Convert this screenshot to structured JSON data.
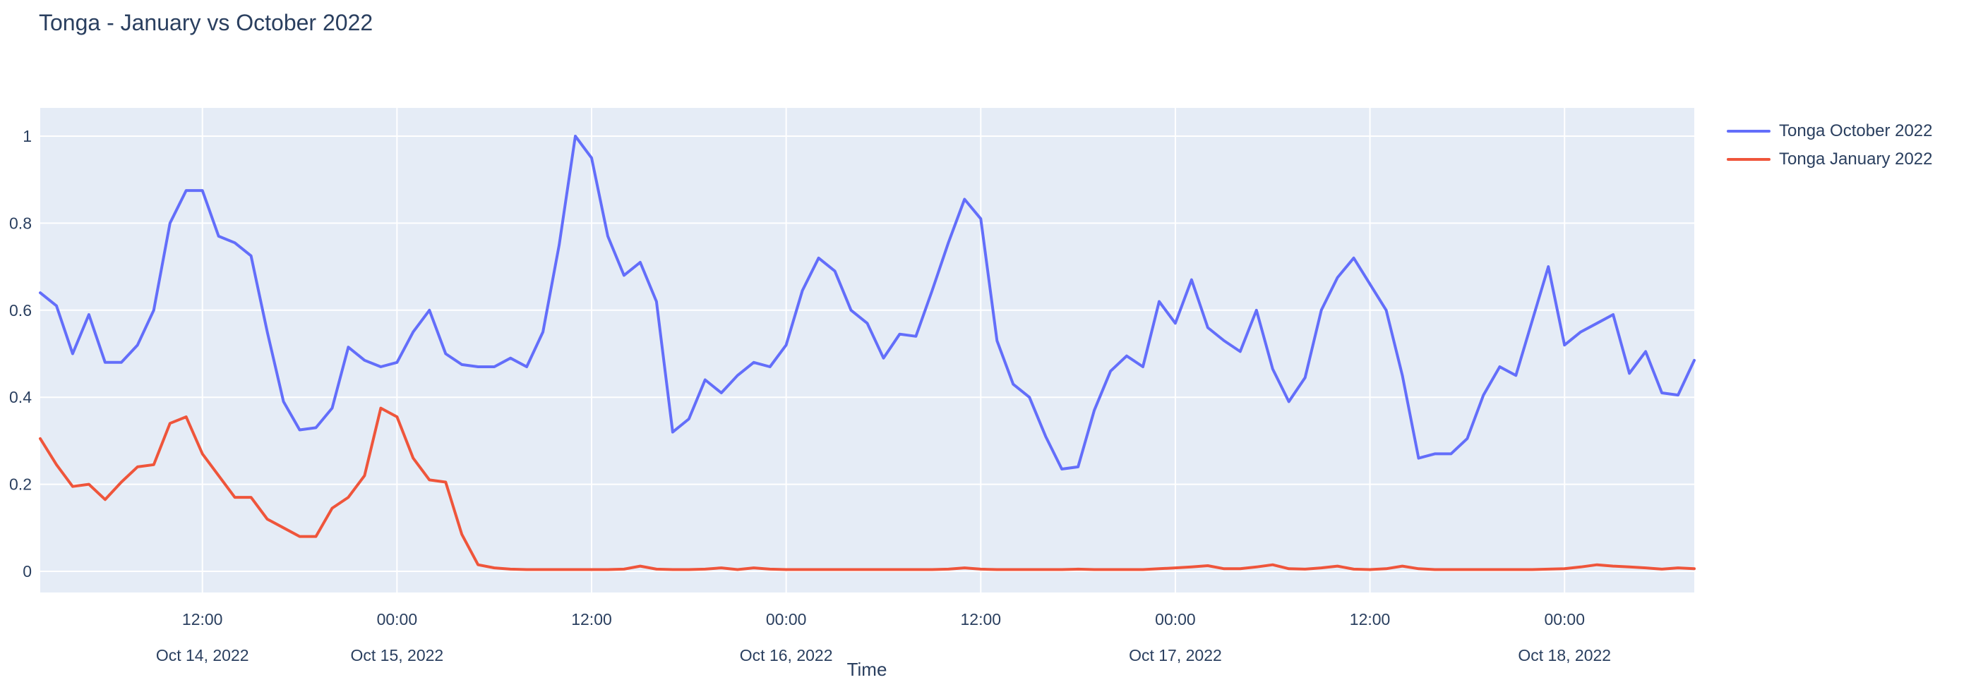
{
  "page": {
    "title": "Tonga - January vs October 2022"
  },
  "legend": {
    "items": [
      {
        "label": "Tonga October 2022",
        "color": "#636efa"
      },
      {
        "label": "Tonga January 2022",
        "color": "#ef553b"
      }
    ]
  },
  "axes": {
    "x_title": "Time",
    "y_tick_labels": [
      "0",
      "0.2",
      "0.4",
      "0.6",
      "0.8",
      "1"
    ]
  },
  "chart_data": {
    "type": "line",
    "title": "Tonga - January vs October 2022",
    "xlabel": "Time",
    "ylabel": "",
    "x_start": "2022-10-14 02:00",
    "x_interval_hours": 1,
    "n_points": 103,
    "ylim": [
      -0.049,
      1.065
    ],
    "y_ticks": [
      0,
      0.2,
      0.4,
      0.6,
      0.8,
      1
    ],
    "plot_bg": "#e5ecf6",
    "grid_color": "#ffffff",
    "legend_position": "top-right-outside",
    "x_ticks": [
      {
        "offset_hours": 10,
        "time": "12:00",
        "date": "Oct 14, 2022"
      },
      {
        "offset_hours": 22,
        "time": "00:00",
        "date": "Oct 15, 2022"
      },
      {
        "offset_hours": 34,
        "time": "12:00",
        "date": ""
      },
      {
        "offset_hours": 46,
        "time": "00:00",
        "date": "Oct 16, 2022"
      },
      {
        "offset_hours": 58,
        "time": "12:00",
        "date": ""
      },
      {
        "offset_hours": 70,
        "time": "00:00",
        "date": "Oct 17, 2022"
      },
      {
        "offset_hours": 82,
        "time": "12:00",
        "date": ""
      },
      {
        "offset_hours": 94,
        "time": "00:00",
        "date": "Oct 18, 2022"
      }
    ],
    "series": [
      {
        "name": "Tonga October 2022",
        "color": "#636efa",
        "values": [
          0.64,
          0.61,
          0.5,
          0.59,
          0.48,
          0.48,
          0.52,
          0.6,
          0.8,
          0.875,
          0.875,
          0.77,
          0.755,
          0.725,
          0.55,
          0.39,
          0.325,
          0.33,
          0.375,
          0.515,
          0.485,
          0.47,
          0.48,
          0.55,
          0.6,
          0.5,
          0.475,
          0.47,
          0.47,
          0.49,
          0.47,
          0.55,
          0.75,
          1.0,
          0.95,
          0.77,
          0.68,
          0.71,
          0.62,
          0.32,
          0.35,
          0.44,
          0.41,
          0.45,
          0.48,
          0.47,
          0.52,
          0.645,
          0.72,
          0.69,
          0.6,
          0.57,
          0.49,
          0.545,
          0.54,
          0.645,
          0.755,
          0.855,
          0.81,
          0.53,
          0.43,
          0.4,
          0.31,
          0.235,
          0.24,
          0.37,
          0.46,
          0.495,
          0.47,
          0.62,
          0.57,
          0.67,
          0.56,
          0.53,
          0.505,
          0.6,
          0.465,
          0.39,
          0.445,
          0.6,
          0.675,
          0.72,
          0.66,
          0.6,
          0.45,
          0.26,
          0.27,
          0.27,
          0.305,
          0.405,
          0.47,
          0.45,
          0.575,
          0.7,
          0.52,
          0.55,
          0.57,
          0.59,
          0.455,
          0.505,
          0.41,
          0.405,
          0.485
        ]
      },
      {
        "name": "Tonga January 2022",
        "color": "#ef553b",
        "values": [
          0.305,
          0.245,
          0.195,
          0.2,
          0.165,
          0.205,
          0.24,
          0.245,
          0.34,
          0.355,
          0.27,
          0.22,
          0.17,
          0.17,
          0.12,
          0.1,
          0.08,
          0.08,
          0.145,
          0.17,
          0.22,
          0.375,
          0.355,
          0.26,
          0.21,
          0.205,
          0.085,
          0.015,
          0.008,
          0.005,
          0.004,
          0.004,
          0.004,
          0.004,
          0.004,
          0.004,
          0.005,
          0.012,
          0.005,
          0.004,
          0.004,
          0.005,
          0.008,
          0.004,
          0.008,
          0.005,
          0.004,
          0.004,
          0.004,
          0.004,
          0.004,
          0.004,
          0.004,
          0.004,
          0.004,
          0.004,
          0.005,
          0.008,
          0.005,
          0.004,
          0.004,
          0.004,
          0.004,
          0.004,
          0.005,
          0.004,
          0.004,
          0.004,
          0.004,
          0.006,
          0.008,
          0.01,
          0.013,
          0.006,
          0.006,
          0.01,
          0.015,
          0.006,
          0.005,
          0.008,
          0.012,
          0.005,
          0.004,
          0.006,
          0.012,
          0.006,
          0.004,
          0.004,
          0.004,
          0.004,
          0.004,
          0.004,
          0.004,
          0.005,
          0.006,
          0.01,
          0.015,
          0.012,
          0.01,
          0.008,
          0.005,
          0.008,
          0.006
        ]
      }
    ]
  }
}
